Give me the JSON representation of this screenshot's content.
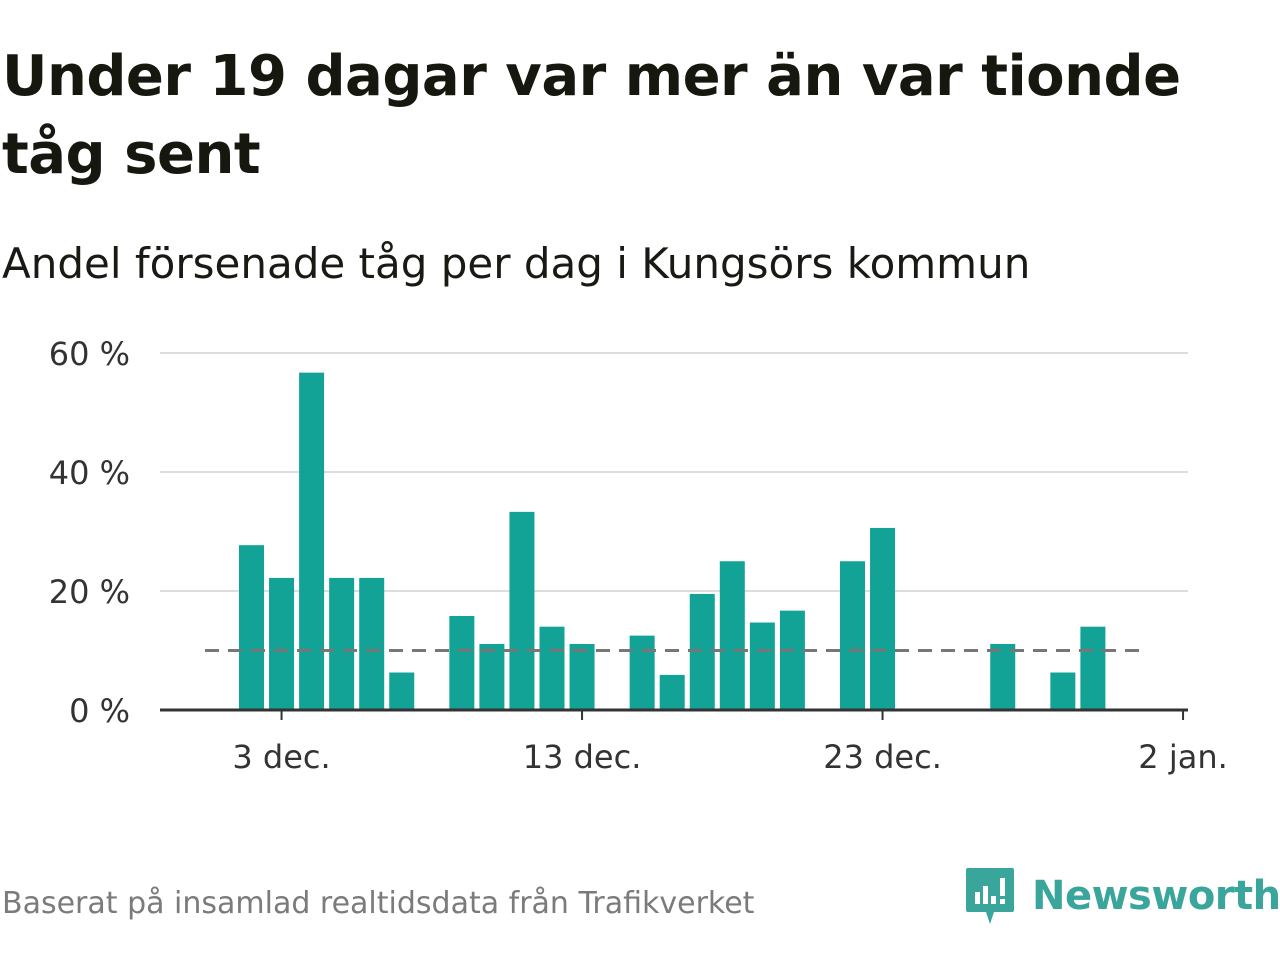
{
  "header": {
    "title": "Under 19 dagar var mer än var tionde tåg sent",
    "subtitle": "Andel försenade tåg per dag i Kungsörs kommun"
  },
  "footer": {
    "source": "Baserat på insamlad realtidsdata från Trafikverket",
    "brand": "Newsworthy",
    "brand_icon": "newsworthy-logo-icon"
  },
  "colors": {
    "bar": "#12a396",
    "reference_line": "#777777",
    "grid": "#dddddd",
    "axis": "#333333",
    "brand": "#3aa59a"
  },
  "chart_data": {
    "type": "bar",
    "title": "Andel försenade tåg per dag i Kungsörs kommun",
    "xlabel": "",
    "ylabel": "",
    "x_ticks": [
      "3 dec.",
      "13 dec.",
      "23 dec.",
      "2 jan."
    ],
    "y_ticks": [
      "0 %",
      "20 %",
      "40 %",
      "60 %"
    ],
    "ylim": [
      0,
      60
    ],
    "grid": true,
    "reference_line": 10,
    "categories": [
      "2 dec.",
      "3 dec.",
      "4 dec.",
      "5 dec.",
      "6 dec.",
      "7 dec.",
      "8 dec.",
      "9 dec.",
      "10 dec.",
      "11 dec.",
      "12 dec.",
      "13 dec.",
      "14 dec.",
      "15 dec.",
      "16 dec.",
      "17 dec.",
      "18 dec.",
      "19 dec.",
      "20 dec.",
      "21 dec.",
      "22 dec.",
      "23 dec.",
      "24 dec.",
      "25 dec.",
      "26 dec.",
      "27 dec.",
      "28 dec.",
      "29 dec.",
      "30 dec.",
      "31 dec."
    ],
    "values": [
      27.7,
      22.2,
      56.7,
      22.2,
      22.2,
      6.3,
      null,
      15.8,
      11.1,
      33.3,
      14.0,
      11.1,
      null,
      12.5,
      5.9,
      19.5,
      25.0,
      14.7,
      16.7,
      null,
      25.0,
      30.6,
      null,
      null,
      null,
      11.1,
      null,
      6.3,
      14.0,
      null
    ]
  }
}
